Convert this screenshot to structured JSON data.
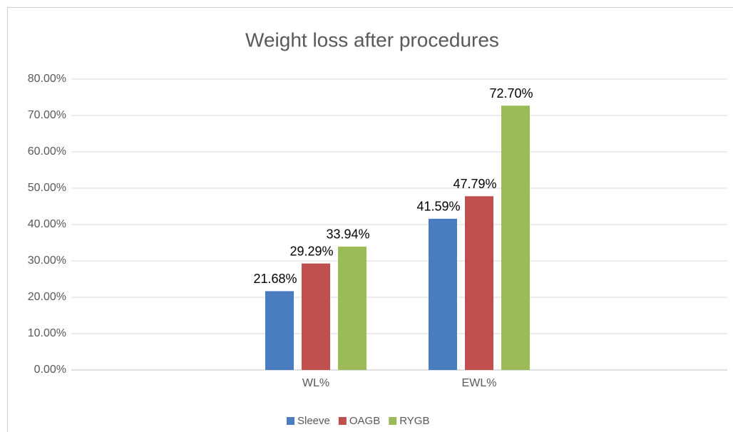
{
  "chart_data": {
    "type": "bar",
    "title": "Weight loss after procedures",
    "categories": [
      "WL%",
      "EWL%"
    ],
    "series": [
      {
        "name": "Sleeve",
        "color": "#4a7cc0",
        "values": [
          21.68,
          41.59
        ],
        "value_labels": [
          "21.68%",
          "41.59%"
        ]
      },
      {
        "name": "OAGB",
        "color": "#c0504d",
        "values": [
          29.29,
          47.79
        ],
        "value_labels": [
          "29.29%",
          "47.79%"
        ]
      },
      {
        "name": "RYGB",
        "color": "#9bbb59",
        "values": [
          33.94,
          72.7
        ],
        "value_labels": [
          "33.94%",
          "72.70%"
        ]
      }
    ],
    "ylim": [
      0,
      80
    ],
    "yticks": [
      {
        "value": 0,
        "label": "0.00%"
      },
      {
        "value": 10,
        "label": "10.00%"
      },
      {
        "value": 20,
        "label": "20.00%"
      },
      {
        "value": 30,
        "label": "30.00%"
      },
      {
        "value": 40,
        "label": "40.00%"
      },
      {
        "value": 50,
        "label": "50.00%"
      },
      {
        "value": 60,
        "label": "60.00%"
      },
      {
        "value": 70,
        "label": "70.00%"
      },
      {
        "value": 80,
        "label": "80.00%"
      }
    ],
    "grid": true,
    "legend": "bottom"
  }
}
